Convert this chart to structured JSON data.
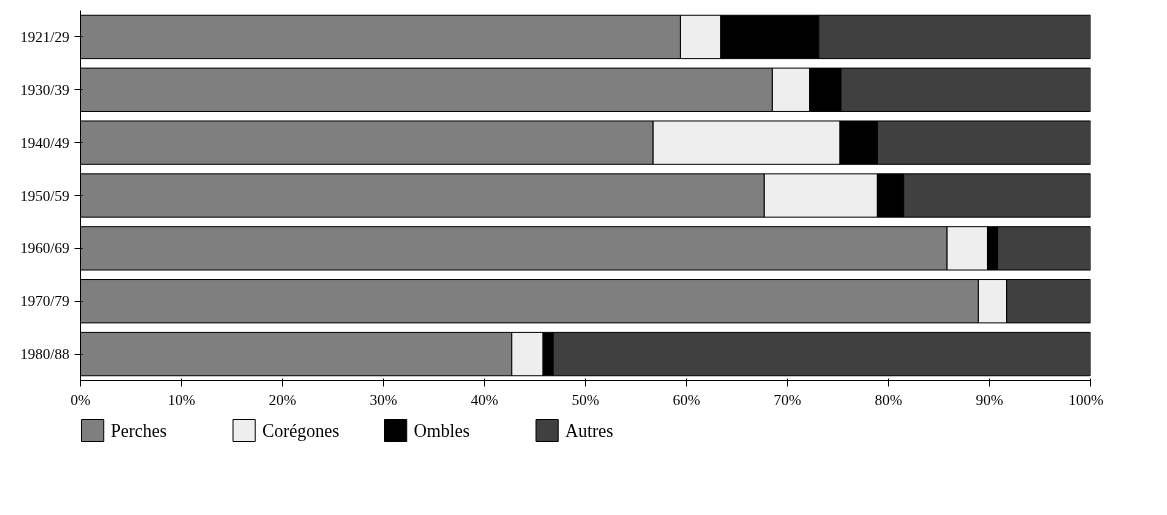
{
  "chart_data": {
    "type": "bar",
    "orientation": "horizontal",
    "stacked": true,
    "categories": [
      "1921/29",
      "1930/39",
      "1940/49",
      "1950/59",
      "1960/69",
      "1970/79",
      "1980/88"
    ],
    "series": [
      {
        "name": "Perches",
        "color": "#7f7f7f",
        "values": [
          59.4,
          68.5,
          56.7,
          67.7,
          85.8,
          88.9,
          42.7
        ]
      },
      {
        "name": "Corégones",
        "color": "#eeeeee",
        "values": [
          4.0,
          3.7,
          18.5,
          11.2,
          4.0,
          2.8,
          3.1
        ]
      },
      {
        "name": "Ombles",
        "color": "#000000",
        "values": [
          9.7,
          3.1,
          3.7,
          2.6,
          1.0,
          0,
          1.0
        ]
      },
      {
        "name": "Autres",
        "color": "#404040",
        "values": [
          26.9,
          24.7,
          21.1,
          18.5,
          9.2,
          8.3,
          53.2
        ]
      }
    ],
    "xlim": [
      0,
      100
    ],
    "xticks": [
      {
        "value": 0,
        "label": "0%"
      },
      {
        "value": 10,
        "label": "10%"
      },
      {
        "value": 20,
        "label": "20%"
      },
      {
        "value": 30,
        "label": "30%"
      },
      {
        "value": 40,
        "label": "40%"
      },
      {
        "value": 50,
        "label": "50%"
      },
      {
        "value": 60,
        "label": "60%"
      },
      {
        "value": 70,
        "label": "70%"
      },
      {
        "value": 80,
        "label": "80%"
      },
      {
        "value": 90,
        "label": "90%"
      },
      {
        "value": 100,
        "label": "100%"
      }
    ],
    "grid": false,
    "legend": "bottom"
  }
}
